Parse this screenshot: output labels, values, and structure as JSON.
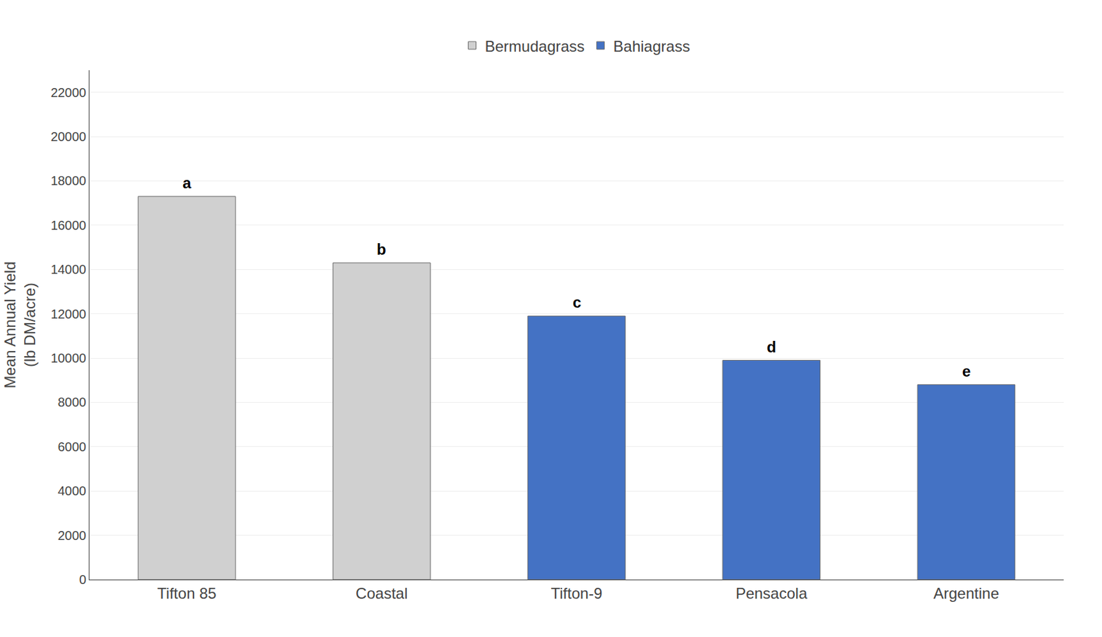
{
  "chart_data": {
    "type": "bar",
    "categories": [
      "Tifton 85",
      "Coastal",
      "Tifton-9",
      "Pensacola",
      "Argentine"
    ],
    "series": [
      {
        "name": "Bermudagrass",
        "color": "#d0d0d0",
        "values": [
          17300,
          14300,
          null,
          null,
          null
        ]
      },
      {
        "name": "Bahiagrass",
        "color": "#4472c4",
        "values": [
          null,
          null,
          11900,
          9900,
          8800
        ]
      }
    ],
    "annotations": [
      {
        "x": "Tifton 85",
        "text": "a"
      },
      {
        "x": "Coastal",
        "text": "b"
      },
      {
        "x": "Tifton-9",
        "text": "c"
      },
      {
        "x": "Pensacola",
        "text": "d"
      },
      {
        "x": "Argentine",
        "text": "e"
      }
    ],
    "ylabel": "Mean Annual Yield\n(lb DM/acre)",
    "ylim": [
      0,
      23000
    ],
    "yticks": [
      0,
      2000,
      4000,
      6000,
      8000,
      10000,
      12000,
      14000,
      16000,
      18000,
      20000,
      22000
    ],
    "grid": true,
    "legend": "top"
  }
}
